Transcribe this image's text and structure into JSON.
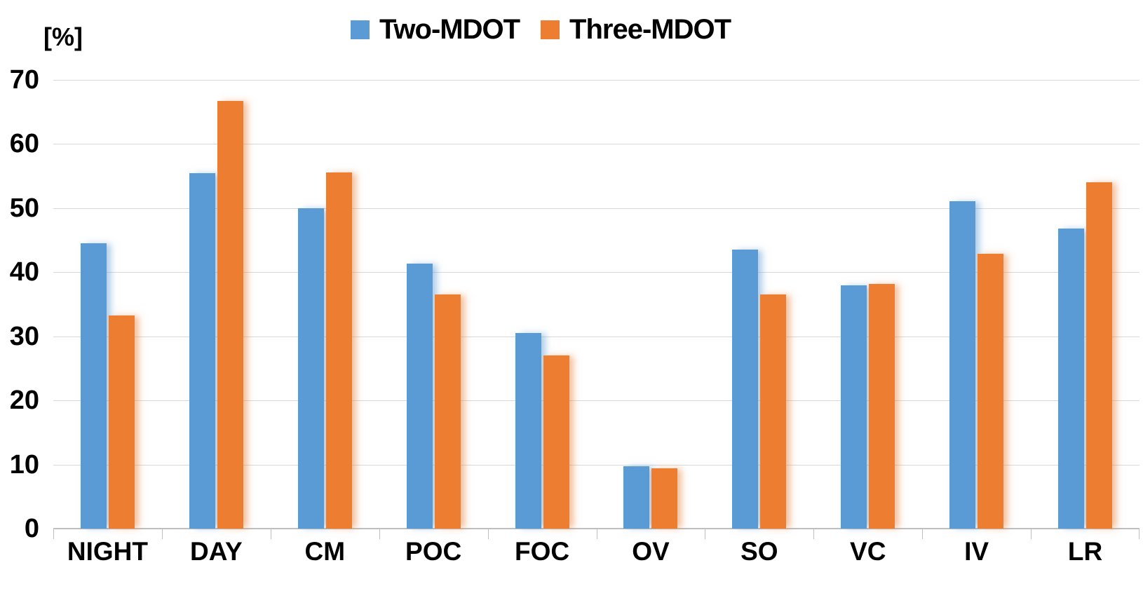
{
  "chart_data": {
    "type": "bar",
    "title": "",
    "ylabel": "[%]",
    "xlabel": "",
    "ylim": [
      0,
      70
    ],
    "yticks": [
      0,
      10,
      20,
      30,
      40,
      50,
      60,
      70
    ],
    "grid": true,
    "legend_position": "top-center",
    "categories": [
      "NIGHT",
      "DAY",
      "CM",
      "POC",
      "FOC",
      "OV",
      "SO",
      "VC",
      "IV",
      "LR"
    ],
    "series": [
      {
        "name": "Two-MDOT",
        "color": "#5B9BD5",
        "glow": "rgba(91,155,213,0.5)",
        "values": [
          44.5,
          55.5,
          50.0,
          41.3,
          30.5,
          9.7,
          43.5,
          38.0,
          51.1,
          46.8
        ]
      },
      {
        "name": "Three-MDOT",
        "color": "#ED7D31",
        "glow": "rgba(237,125,49,0.5)",
        "values": [
          33.3,
          66.7,
          55.6,
          36.5,
          27.0,
          9.4,
          36.5,
          38.2,
          42.9,
          54.0
        ]
      }
    ]
  },
  "colors": {
    "gridline": "#d9d9d9",
    "axis": "#bfbfbf",
    "text": "#000000",
    "background": "#ffffff"
  }
}
